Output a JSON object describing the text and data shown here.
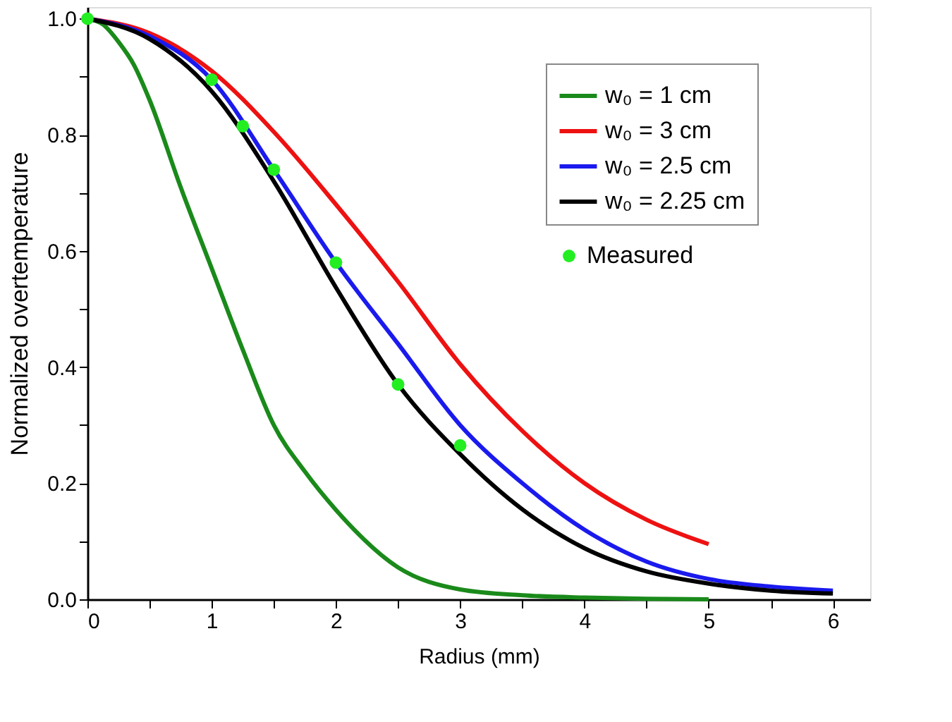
{
  "chart_data": {
    "type": "line",
    "xlabel": "Radius (mm)",
    "ylabel": "Normalized overtemperature",
    "xlim": [
      0,
      6.3
    ],
    "ylim": [
      0,
      1.02
    ],
    "xticks": [
      0,
      {
        "value": 0.5,
        "label": null
      },
      1,
      {
        "value": 1.5,
        "label": null
      },
      2,
      {
        "value": 2.5,
        "label": null
      },
      3,
      {
        "value": 3.5,
        "label": null
      },
      4,
      {
        "value": 4.5,
        "label": null
      },
      5,
      {
        "value": 5.5,
        "label": null
      },
      6
    ],
    "yticks": [
      {
        "value": 0,
        "label": "0.0"
      },
      {
        "value": 0.1,
        "label": null
      },
      {
        "value": 0.2,
        "label": "0.2"
      },
      {
        "value": 0.3,
        "label": null
      },
      {
        "value": 0.4,
        "label": "0.4"
      },
      {
        "value": 0.5,
        "label": null
      },
      {
        "value": 0.6,
        "label": "0.6"
      },
      {
        "value": 0.7,
        "label": null
      },
      {
        "value": 0.8,
        "label": "0.8"
      },
      {
        "value": 0.9,
        "label": null
      },
      {
        "value": 1.0,
        "label": "1.0"
      }
    ],
    "grid": false,
    "legend": "top right",
    "line_style": "solid",
    "marker": "none",
    "series": [
      {
        "name": "w₀ = 1 cm",
        "color": "#1a8a1a",
        "x": [
          0,
          0.125,
          0.25,
          0.375,
          0.5,
          0.75,
          1,
          1.25,
          1.5,
          1.75,
          2,
          2.5,
          3,
          3.5,
          4,
          4.5,
          5
        ],
        "values": [
          1.0,
          0.99,
          0.96,
          0.92,
          0.86,
          0.71,
          0.57,
          0.43,
          0.3,
          0.22,
          0.154,
          0.055,
          0.017,
          0.007,
          0.003,
          0.001,
          0.0
        ]
      },
      {
        "name": "w₀ = 3 cm",
        "color": "#ee1111",
        "x": [
          0,
          0.5,
          1,
          1.5,
          2,
          2.5,
          3,
          3.5,
          4,
          4.5,
          5
        ],
        "values": [
          1.0,
          0.975,
          0.91,
          0.805,
          0.68,
          0.547,
          0.405,
          0.29,
          0.2,
          0.137,
          0.095
        ]
      },
      {
        "name": "w₀ = 2.5 cm",
        "color": "#1a1aee",
        "x": [
          0,
          0.5,
          1,
          1.5,
          2,
          2.5,
          3,
          3.5,
          4,
          4.5,
          5,
          5.5,
          6
        ],
        "values": [
          1.0,
          0.97,
          0.895,
          0.74,
          0.58,
          0.44,
          0.3,
          0.2,
          0.12,
          0.065,
          0.035,
          0.022,
          0.015
        ]
      },
      {
        "name": "w₀ = 2.25 cm",
        "color": "#000000",
        "x": [
          0,
          0.5,
          1,
          1.5,
          2,
          2.5,
          3,
          3.5,
          4,
          4.5,
          5,
          5.5,
          6
        ],
        "values": [
          1.0,
          0.965,
          0.875,
          0.72,
          0.537,
          0.37,
          0.25,
          0.155,
          0.088,
          0.048,
          0.027,
          0.015,
          0.01
        ]
      },
      {
        "name": "Measured",
        "type": "scatter",
        "marker": "circle",
        "color": "#22ee22",
        "x": [
          0,
          1,
          1.25,
          1.5,
          2,
          2.5,
          3
        ],
        "values": [
          1.0,
          0.895,
          0.815,
          0.74,
          0.58,
          0.37,
          0.265
        ]
      }
    ]
  }
}
